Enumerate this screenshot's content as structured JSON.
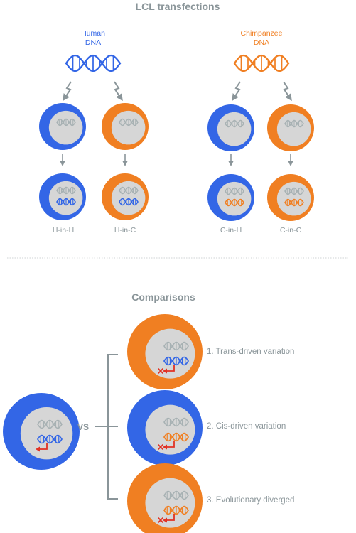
{
  "colors": {
    "human": "#3366e6",
    "chimp": "#f07f22",
    "gray": "#8a9599",
    "dna_gray": "#a7b1b3",
    "nucleus": "#d6d6d6",
    "red": "#e23224",
    "divider": "#cfd3d4"
  },
  "transfections": {
    "title": "LCL transfections",
    "human_source": {
      "line1": "Human",
      "line2": "DNA"
    },
    "chimp_source": {
      "line1": "Chimpanzee",
      "line2": "DNA"
    },
    "labels": [
      "H-in-H",
      "H-in-C",
      "C-in-H",
      "C-in-C"
    ]
  },
  "comparisons": {
    "title": "Comparisons",
    "vs": "VS",
    "items": [
      "1. Trans-driven variation",
      "2. Cis-driven variation",
      "3. Evolutionary diverged"
    ]
  }
}
